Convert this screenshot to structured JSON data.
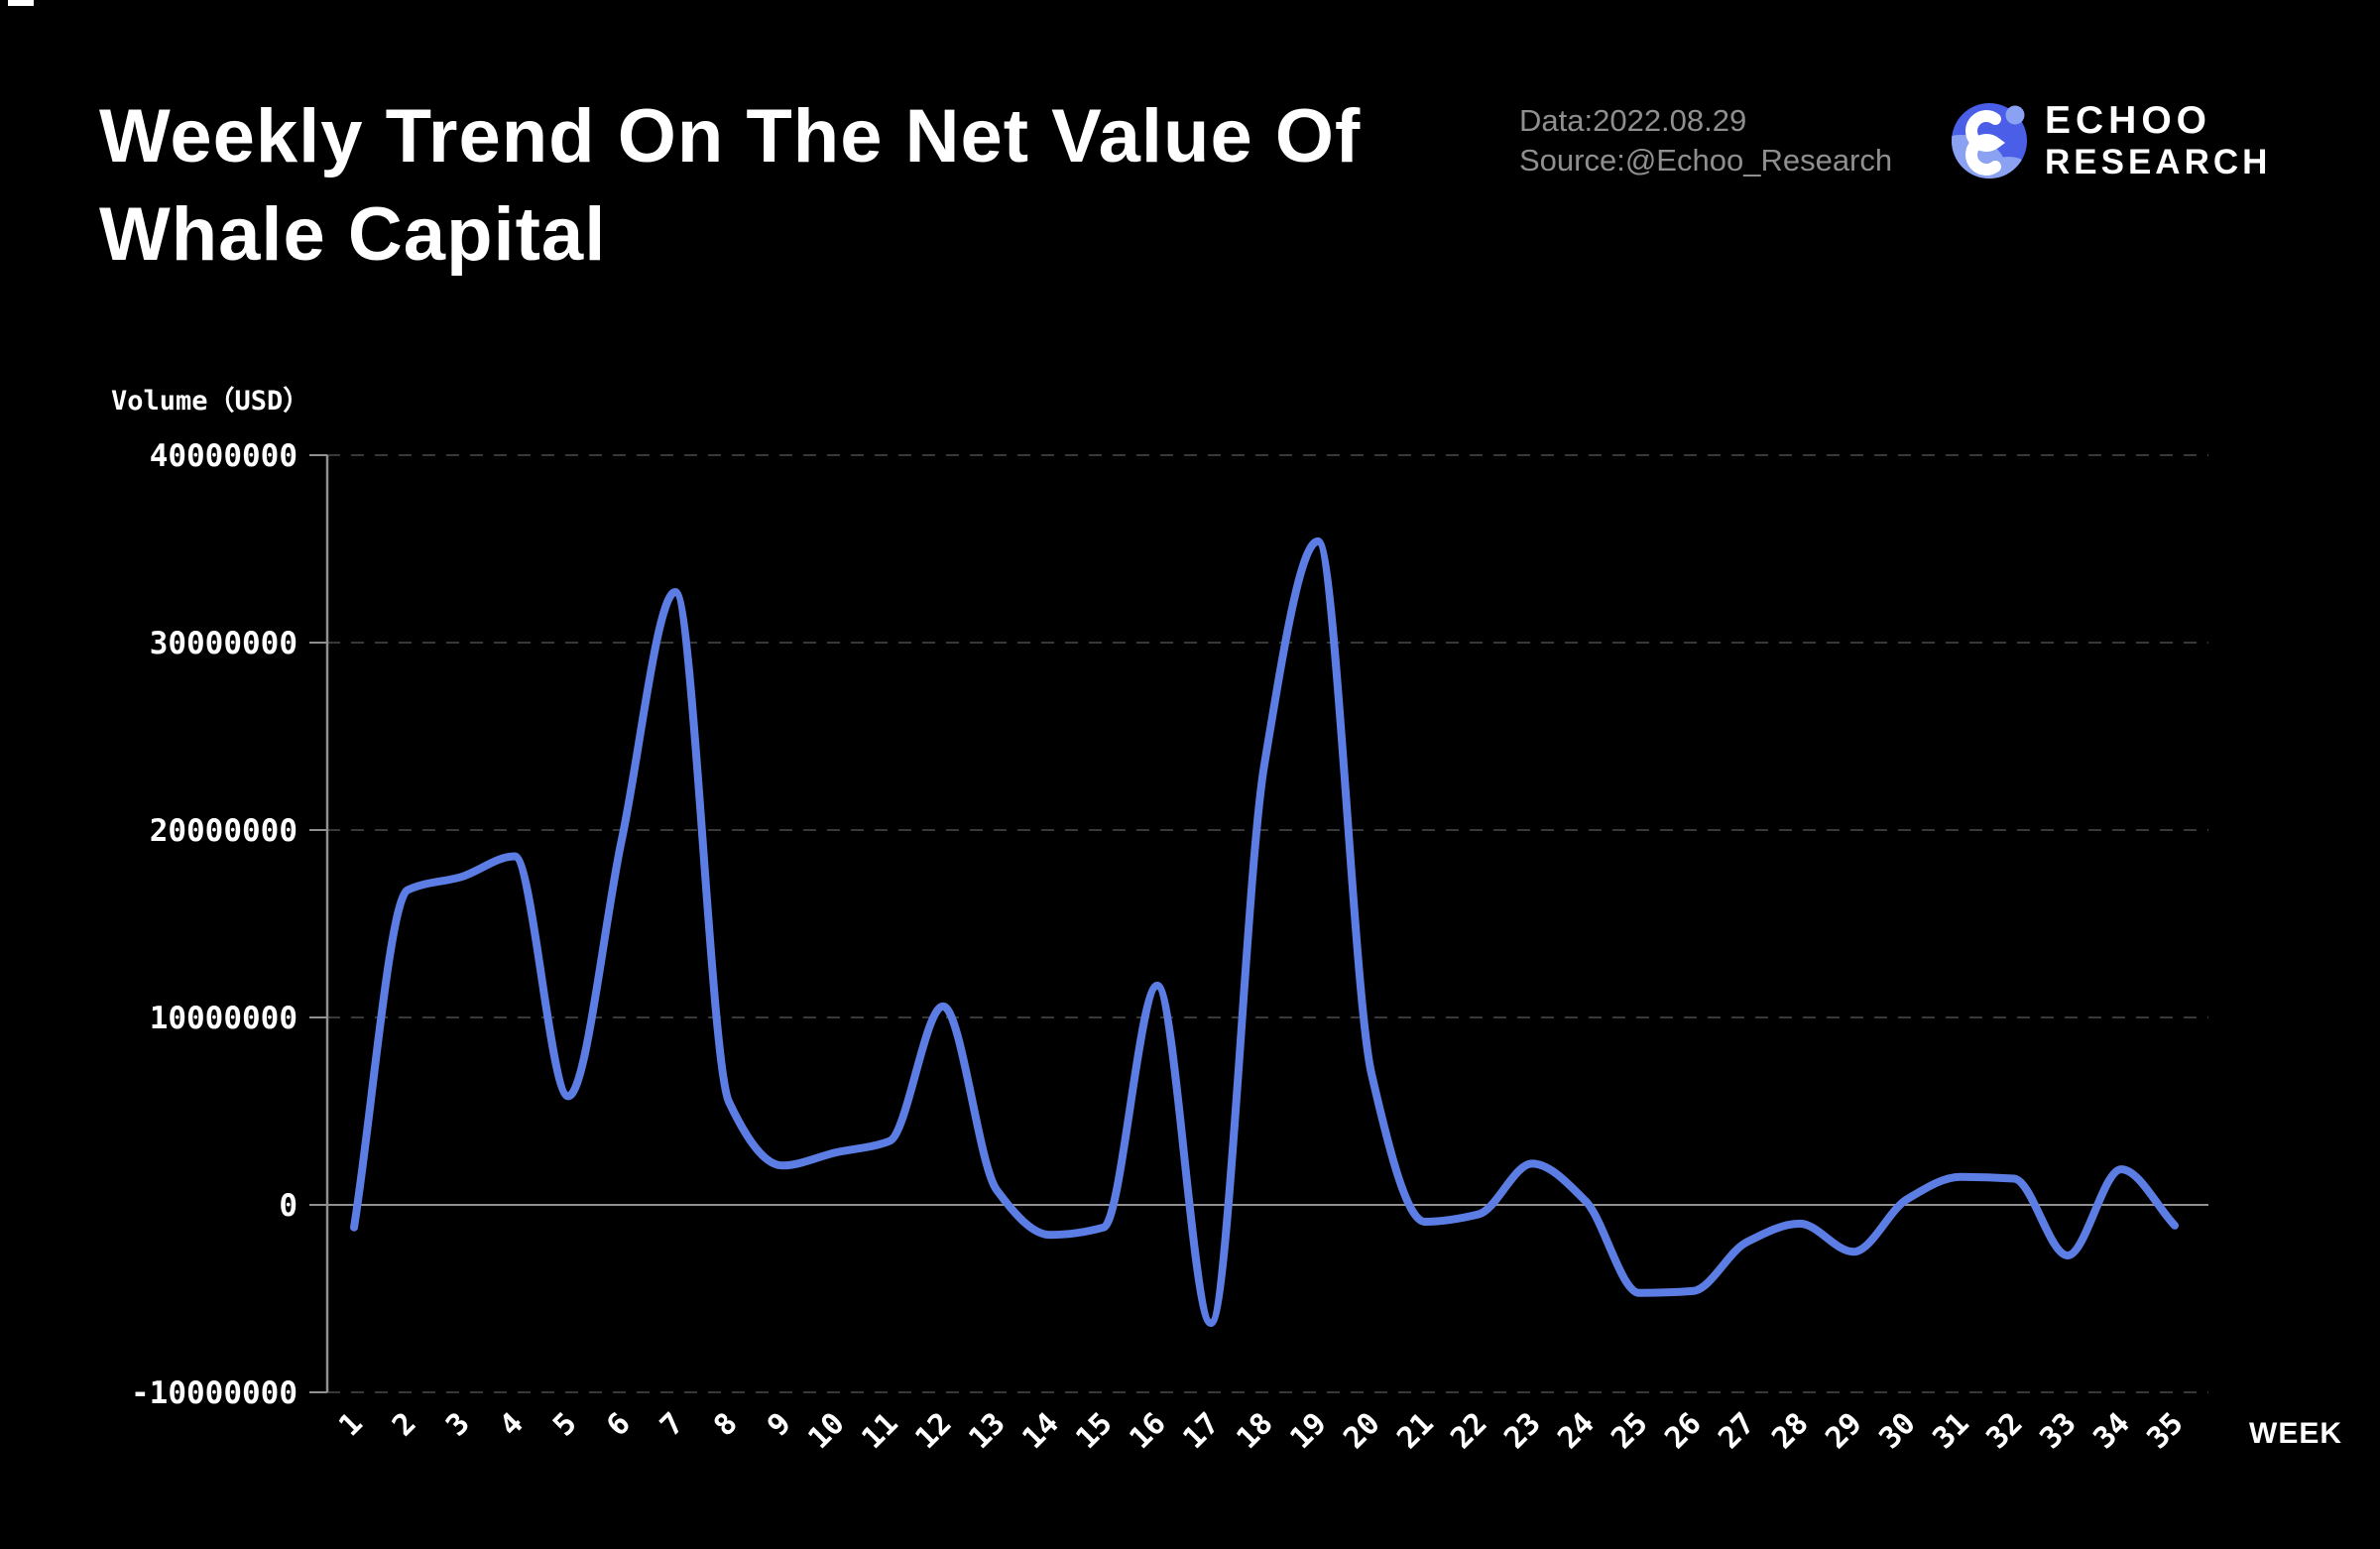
{
  "header": {
    "title_line1": "Weekly Trend On The Net Value Of",
    "title_line2": "Whale Capital",
    "meta": {
      "data_line": "Data:2022.08.29",
      "source_line": "Source:@Echoo_Research"
    },
    "brand": {
      "name_line1": "ECHOO",
      "name_line2": "RESEARCH"
    }
  },
  "chart_data": {
    "type": "line",
    "title": "Weekly Trend On The Net Value Of Whale Capital",
    "ylabel": "Volume（USD）",
    "xlabel": "WEEK",
    "x": [
      1,
      2,
      3,
      4,
      5,
      6,
      7,
      8,
      9,
      10,
      11,
      12,
      13,
      14,
      15,
      16,
      17,
      18,
      19,
      20,
      21,
      22,
      23,
      24,
      25,
      26,
      27,
      28,
      29,
      30,
      31,
      32,
      33,
      34,
      35
    ],
    "series": [
      {
        "name": "Net value of whale capital (USD)",
        "values": [
          -1200000,
          16800000,
          17500000,
          18600000,
          5800000,
          19500000,
          32700000,
          5500000,
          2100000,
          2800000,
          3400000,
          10600000,
          800000,
          -1600000,
          -1200000,
          11700000,
          -6300000,
          23500000,
          35400000,
          7000000,
          -900000,
          -500000,
          2200000,
          200000,
          -4700000,
          -4600000,
          -2000000,
          -1000000,
          -2500000,
          300000,
          1500000,
          1400000,
          -2700000,
          1900000,
          -1100000
        ]
      }
    ],
    "ylim": [
      -10000000,
      40000000
    ],
    "yticks": [
      {
        "value": 40000000,
        "label": "40000000"
      },
      {
        "value": 30000000,
        "label": "30000000"
      },
      {
        "value": 20000000,
        "label": "20000000"
      },
      {
        "value": 10000000,
        "label": "10000000"
      },
      {
        "value": 0,
        "label": "0"
      },
      {
        "value": -10000000,
        "label": "-10000000"
      }
    ],
    "grid": "horizontal-dashed",
    "legend": "none",
    "zero_line": true
  },
  "colors": {
    "background": "#000000",
    "line": "#5b7de4",
    "grid": "#383838",
    "axis": "#909090",
    "text_primary": "#ffffff",
    "text_secondary": "#8f8f8f",
    "brand_blue": "#4a5ee8",
    "brand_light_blue": "#8ba1f2"
  }
}
